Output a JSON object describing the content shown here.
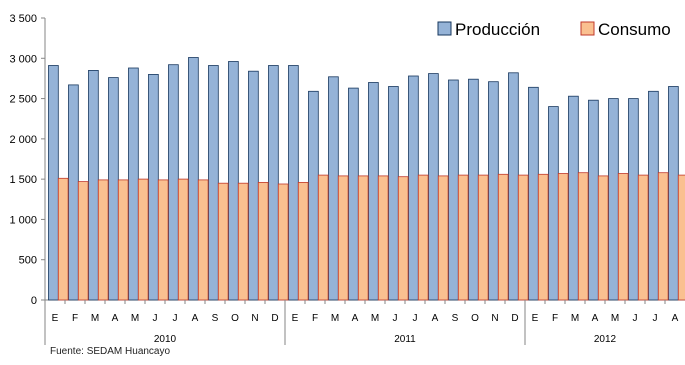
{
  "chart_data": {
    "type": "bar",
    "title": "",
    "xlabel": "",
    "ylabel": "",
    "ylim": [
      0,
      3500
    ],
    "yticks": [
      "0",
      "500",
      "1 000",
      "1 500",
      "2 000",
      "2 500",
      "3 000",
      "3 500"
    ],
    "grid": false,
    "legend_position": "top-right",
    "categories": [
      "E",
      "F",
      "M",
      "A",
      "M",
      "J",
      "J",
      "A",
      "S",
      "O",
      "N",
      "D",
      "E",
      "F",
      "M",
      "A",
      "M",
      "J",
      "J",
      "A",
      "S",
      "O",
      "N",
      "D",
      "E",
      "F",
      "M",
      "A",
      "M",
      "J",
      "J",
      "A"
    ],
    "groups": [
      {
        "label": "2010",
        "count": 12
      },
      {
        "label": "2011",
        "count": 12
      },
      {
        "label": "2012",
        "count": 8
      }
    ],
    "series": [
      {
        "name": "Producción",
        "color": "#95B3D7",
        "stroke": "#17375E",
        "values": [
          2910,
          2670,
          2850,
          2760,
          2880,
          2800,
          2920,
          3010,
          2910,
          2960,
          2840,
          2910,
          2910,
          2590,
          2770,
          2630,
          2700,
          2650,
          2780,
          2810,
          2730,
          2740,
          2710,
          2820,
          2640,
          2400,
          2530,
          2480,
          2500,
          2500,
          2590,
          2650
        ]
      },
      {
        "name": "Consumo",
        "color": "#FAC090",
        "stroke": "#C0392B",
        "values": [
          1510,
          1470,
          1490,
          1490,
          1500,
          1490,
          1500,
          1490,
          1450,
          1450,
          1460,
          1440,
          1460,
          1550,
          1540,
          1540,
          1540,
          1530,
          1550,
          1540,
          1550,
          1550,
          1560,
          1550,
          1560,
          1570,
          1580,
          1540,
          1570,
          1550,
          1580,
          1550
        ]
      }
    ]
  },
  "source_note": "Fuente: SEDAM Huancayo"
}
